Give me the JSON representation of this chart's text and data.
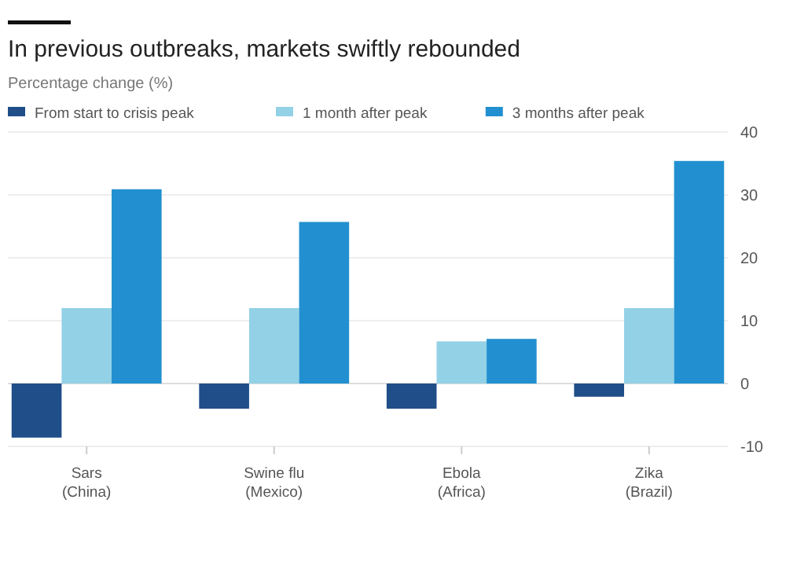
{
  "chart_data": {
    "type": "bar",
    "title": "In previous outbreaks, markets swiftly rebounded",
    "subtitle": "Percentage change (%)",
    "categories": [
      "Sars (China)",
      "Swine flu (Mexico)",
      "Ebola (Africa)",
      "Zika (Brazil)"
    ],
    "series": [
      {
        "name": "From start to crisis peak",
        "color": "#1f4e89",
        "values": [
          -8.6,
          -4,
          -4,
          -2.1
        ]
      },
      {
        "name": "1 month after peak",
        "color": "#93d1e6",
        "values": [
          12,
          12,
          6.7,
          12
        ]
      },
      {
        "name": "3 months after peak",
        "color": "#2290d0",
        "values": [
          30.9,
          25.7,
          7.1,
          35.4
        ]
      }
    ],
    "ylim": [
      -10,
      40
    ],
    "yticks": [
      -10,
      0,
      10,
      20,
      30,
      40
    ],
    "grid": "y",
    "legend": "top left"
  }
}
